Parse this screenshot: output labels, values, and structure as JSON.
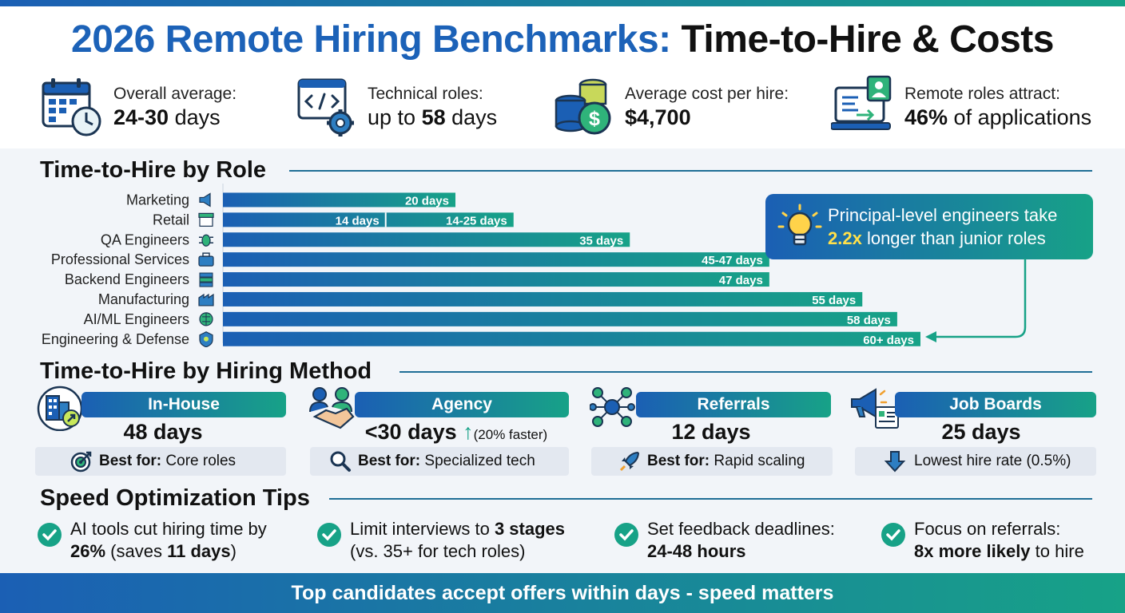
{
  "title": {
    "highlight": "2026 Remote Hiring Benchmarks:",
    "rest": "Time-to-Hire & Costs"
  },
  "stats": [
    {
      "icon": "calendar-clock-icon",
      "label": "Overall average:",
      "value_bold": "24-30",
      "value_rest": " days"
    },
    {
      "icon": "code-gear-icon",
      "label": "Technical roles:",
      "value_pre": "up to ",
      "value_bold": "58",
      "value_rest": " days"
    },
    {
      "icon": "coin-stack-dollar-icon",
      "label": "Average cost per hire:",
      "value_bold": "$4,700"
    },
    {
      "icon": "laptop-application-icon",
      "label": "Remote roles attract:",
      "value_bold": "46%",
      "value_rest": " of applications"
    }
  ],
  "sections": {
    "by_role": "Time-to-Hire by Role",
    "by_method": "Time-to-Hire by Hiring Method",
    "tips": "Speed Optimization Tips"
  },
  "chart_data": {
    "type": "bar",
    "orientation": "horizontal",
    "title": "Time-to-Hire by Role",
    "unit": "days",
    "categories": [
      "Marketing",
      "Retail",
      "QA Engineers",
      "Professional Services",
      "Backend Engineers",
      "Manufacturing",
      "AI/ML Engineers",
      "Engineering & Defense"
    ],
    "icons": [
      "megaphone-icon",
      "storefront-icon",
      "bug-icon",
      "briefcase-icon",
      "server-icon",
      "factory-icon",
      "brain-chip-icon",
      "shield-icon"
    ],
    "values": [
      20,
      25,
      35,
      47,
      47,
      55,
      58,
      60
    ],
    "range_low": [
      null,
      14,
      null,
      45,
      null,
      null,
      null,
      null
    ],
    "labels": [
      "20 days",
      "14-25 days",
      "35 days",
      "45-47 days",
      "47 days",
      "55 days",
      "58 days",
      "60+ days"
    ],
    "segment_labels": {
      "1": "14 days"
    },
    "xlim": [
      0,
      60
    ],
    "grid": false,
    "legend": "none"
  },
  "callout": {
    "icon": "lightbulb-icon",
    "line1": "Principal-level engineers take",
    "bold": "2.2x",
    "line2_rest": " longer than junior roles"
  },
  "methods": [
    {
      "icon": "building-arrow-icon",
      "name": "In-House",
      "days": "48 days",
      "best_icon": "target-icon",
      "best_bold": "Best for:",
      "best_text": " Core roles"
    },
    {
      "icon": "handshake-icon",
      "name": "Agency",
      "days": "<30 days",
      "arrow": "↑",
      "note": "(20% faster)",
      "best_icon": "magnifier-icon",
      "best_bold": "Best for:",
      "best_text": " Specialized tech"
    },
    {
      "icon": "network-people-icon",
      "name": "Referrals",
      "days": "12 days",
      "best_icon": "rocket-icon",
      "best_bold": "Best for:",
      "best_text": " Rapid scaling"
    },
    {
      "icon": "megaphone-board-icon",
      "name": "Job Boards",
      "days": "25 days",
      "best_icon": "down-arrow-icon",
      "best_text": "Lowest hire rate (0.5%)"
    }
  ],
  "tips": [
    {
      "l1": "AI tools cut hiring time by",
      "l2_b1": "26%",
      "l2_t1": " (saves ",
      "l2_b2": "11 days",
      "l2_t2": ")"
    },
    {
      "l1_t": "Limit interviews to ",
      "l1_b": "3 stages",
      "l2": "(vs. 35+ for tech roles)"
    },
    {
      "l1": "Set feedback deadlines:",
      "l2_b": "24-48 hours"
    },
    {
      "l1": "Focus on referrals:",
      "l2_b": "8x more likely",
      "l2_t": " to hire"
    }
  ],
  "footer": "Top candidates accept offers within days - speed matters",
  "colors": {
    "blue": "#1b5fb4",
    "teal": "#17a287",
    "title_blue": "#1c62b8",
    "highlight": "#ffe04a"
  }
}
